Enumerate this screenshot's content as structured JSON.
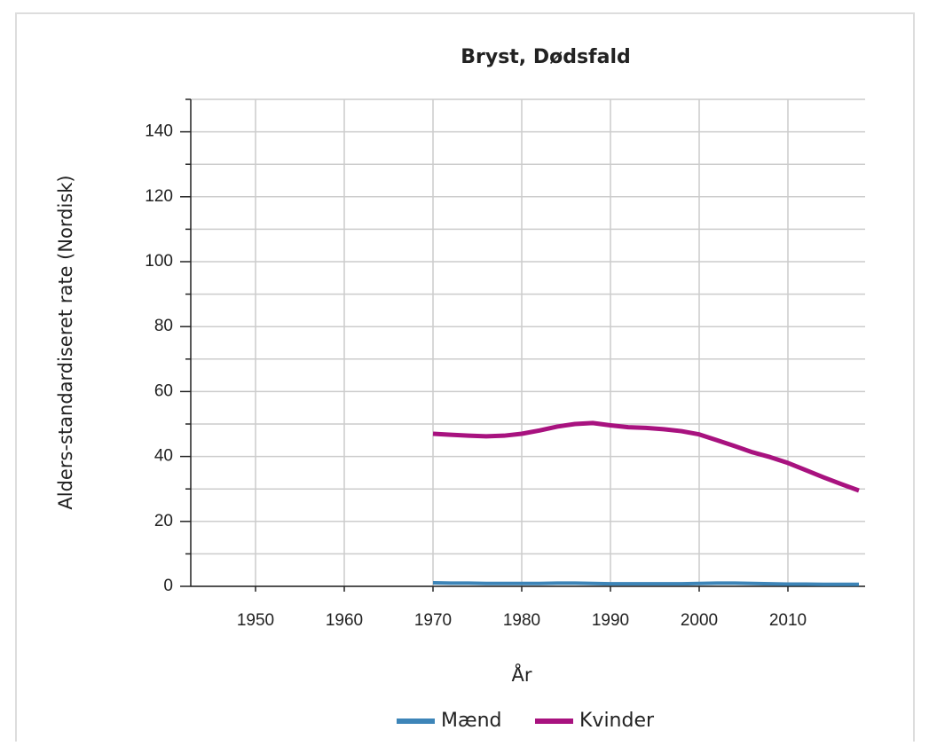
{
  "chart_data": {
    "type": "line",
    "title": "Bryst, Dødsfald",
    "x_label": "År",
    "y_label": "Alders-standardiseret rate (Nordisk)",
    "x": [
      1970,
      1972,
      1974,
      1976,
      1978,
      1980,
      1982,
      1984,
      1986,
      1988,
      1990,
      1992,
      1994,
      1996,
      1998,
      2000,
      2002,
      2004,
      2006,
      2008,
      2010,
      2012,
      2014,
      2016,
      2018
    ],
    "series": [
      {
        "name": "Mænd",
        "color": "#3d85b8",
        "values": [
          1.1,
          1.0,
          1.0,
          0.9,
          0.9,
          0.9,
          0.9,
          1.0,
          1.0,
          0.9,
          0.8,
          0.8,
          0.8,
          0.8,
          0.8,
          0.9,
          1.0,
          1.0,
          0.9,
          0.8,
          0.7,
          0.7,
          0.6,
          0.6,
          0.6
        ]
      },
      {
        "name": "Kvinder",
        "color": "#a8127f",
        "values": [
          47,
          46.7,
          46.4,
          46.2,
          46.4,
          47,
          48,
          49.2,
          50,
          50.3,
          49.6,
          49,
          48.8,
          48.4,
          47.8,
          46.8,
          45,
          43.2,
          41.3,
          39.8,
          38,
          35.8,
          33.6,
          31.5,
          29.5
        ]
      }
    ],
    "xlim": [
      1942.7,
      2018.7
    ],
    "xticks": [
      1950,
      1960,
      1970,
      1980,
      1990,
      2000,
      2010
    ],
    "ylim": [
      0,
      150
    ],
    "yticks": [
      0,
      20,
      40,
      60,
      80,
      100,
      120,
      140
    ],
    "yticks_minor": [
      10,
      30,
      50,
      70,
      90,
      110,
      130,
      150
    ],
    "grid": true,
    "legend": "bottom"
  }
}
